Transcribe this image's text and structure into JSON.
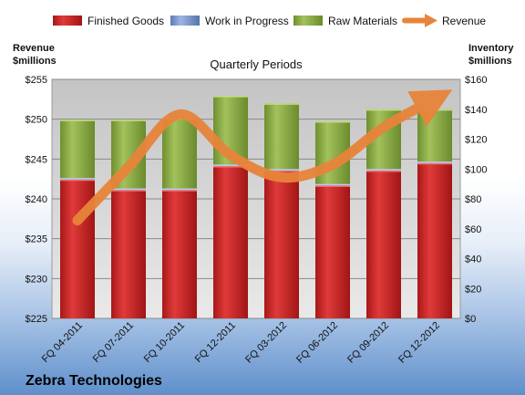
{
  "chart_data": {
    "type": "bar",
    "title": "Quarterly Periods",
    "company": "Zebra Technologies",
    "categories": [
      "FQ 04-2011",
      "FQ 07-2011",
      "FQ 10-2011",
      "FQ 12-2011",
      "FQ 03-2012",
      "FQ 06-2012",
      "FQ 09-2012",
      "FQ 12-2012"
    ],
    "left_axis": {
      "title_line1": "Revenue",
      "title_line2": "$millions",
      "ylim": [
        225,
        255
      ],
      "ticks": [
        225,
        230,
        235,
        240,
        245,
        250,
        255
      ],
      "tick_labels": [
        "$225",
        "$230",
        "$235",
        "$240",
        "$245",
        "$250",
        "$255"
      ]
    },
    "right_axis": {
      "title_line1": "Inventory",
      "title_line2": "$millions",
      "ylim": [
        0,
        160
      ],
      "ticks": [
        0,
        20,
        40,
        60,
        80,
        100,
        120,
        140,
        160
      ],
      "tick_labels": [
        "$0",
        "$20",
        "$40",
        "$60",
        "$80",
        "$100",
        "$120",
        "$140",
        "$160"
      ]
    },
    "stacked_series": [
      {
        "name": "Finished Goods",
        "color": "#d42a2a",
        "values": [
          93,
          86,
          86,
          102,
          99,
          89,
          99,
          104
        ]
      },
      {
        "name": "Work in Progress",
        "color": "#6d8fc9",
        "values": [
          1,
          1,
          1,
          1,
          1,
          1,
          1,
          1
        ]
      },
      {
        "name": "Raw Materials",
        "color": "#8fb04a",
        "values": [
          39,
          46,
          47,
          46,
          44,
          42,
          40,
          35
        ]
      }
    ],
    "line_series": {
      "name": "Revenue",
      "color": "#e8843a",
      "axis": "left",
      "values": [
        237.3,
        244.0,
        250.6,
        245.5,
        242.7,
        244.3,
        249.0,
        252.5
      ]
    },
    "grid": true,
    "legend_position": "top"
  }
}
